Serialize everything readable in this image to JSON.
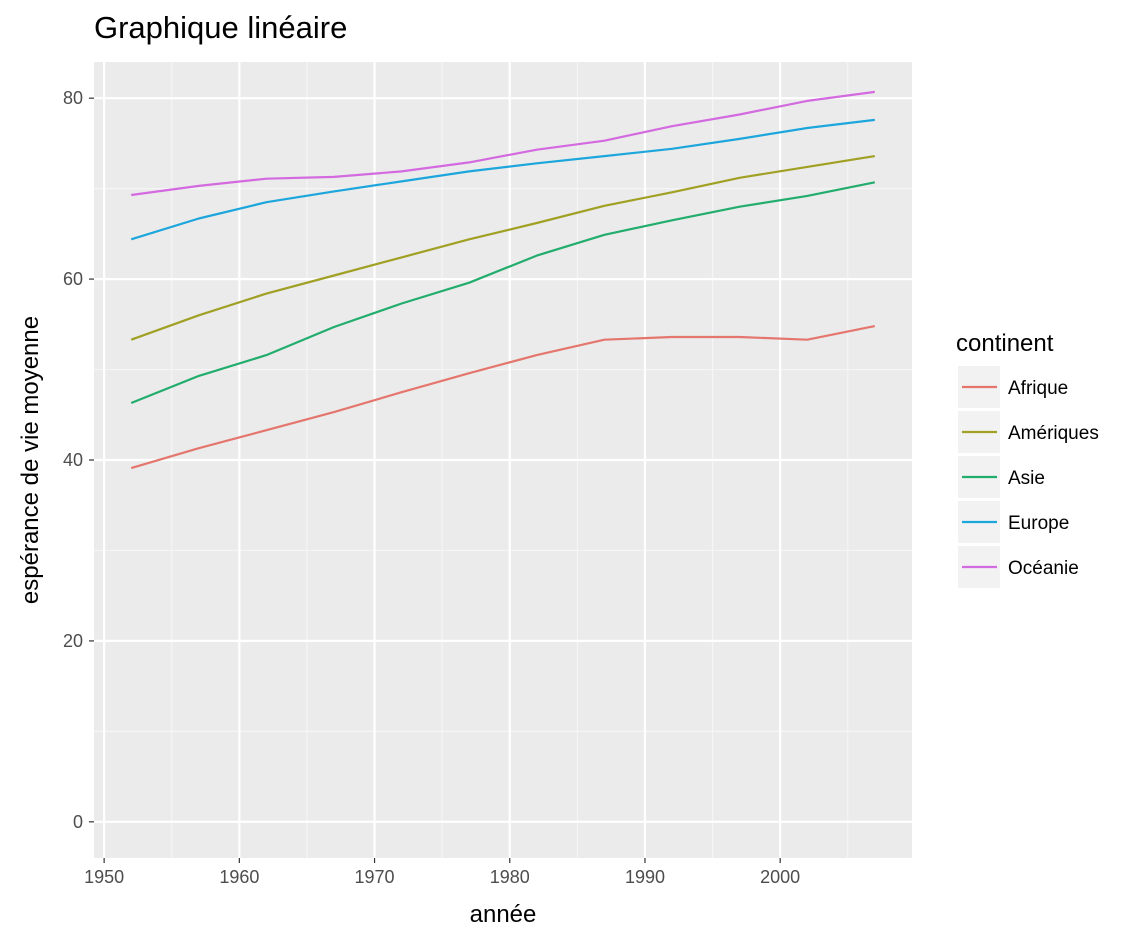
{
  "chart_data": {
    "type": "line",
    "title": "Graphique linéaire",
    "xlabel": "année",
    "ylabel": "espérance de vie moyenne",
    "xlim": [
      1949.25,
      2009.75
    ],
    "ylim": [
      -4,
      84
    ],
    "x_ticks": [
      1950,
      1960,
      1970,
      1980,
      1990,
      2000
    ],
    "y_ticks": [
      0,
      20,
      40,
      60,
      80
    ],
    "grid": true,
    "background": "#ebebeb",
    "legend": {
      "title": "continent",
      "placement": "right"
    },
    "x": [
      1952,
      1957,
      1962,
      1967,
      1972,
      1977,
      1982,
      1987,
      1992,
      1997,
      2002,
      2007
    ],
    "series": [
      {
        "name": "Afrique",
        "color": "#e4766e",
        "values": [
          39.1,
          41.3,
          43.3,
          45.3,
          47.5,
          49.6,
          51.6,
          53.3,
          53.6,
          53.6,
          53.3,
          54.8
        ]
      },
      {
        "name": "Amériques",
        "color": "#a0a024",
        "values": [
          53.3,
          56.0,
          58.4,
          60.4,
          62.4,
          64.4,
          66.2,
          68.1,
          69.6,
          71.2,
          72.4,
          73.6
        ]
      },
      {
        "name": "Asie",
        "color": "#22ad6d",
        "values": [
          46.3,
          49.3,
          51.6,
          54.7,
          57.3,
          59.6,
          62.6,
          64.9,
          66.5,
          68.0,
          69.2,
          70.7
        ]
      },
      {
        "name": "Europe",
        "color": "#1ca6dc",
        "values": [
          64.4,
          66.7,
          68.5,
          69.7,
          70.8,
          71.9,
          72.8,
          73.6,
          74.4,
          75.5,
          76.7,
          77.6
        ]
      },
      {
        "name": "Océanie",
        "color": "#d46ae0",
        "values": [
          69.3,
          70.3,
          71.1,
          71.3,
          71.9,
          72.9,
          74.3,
          75.3,
          76.9,
          78.2,
          79.7,
          80.7
        ]
      }
    ]
  }
}
